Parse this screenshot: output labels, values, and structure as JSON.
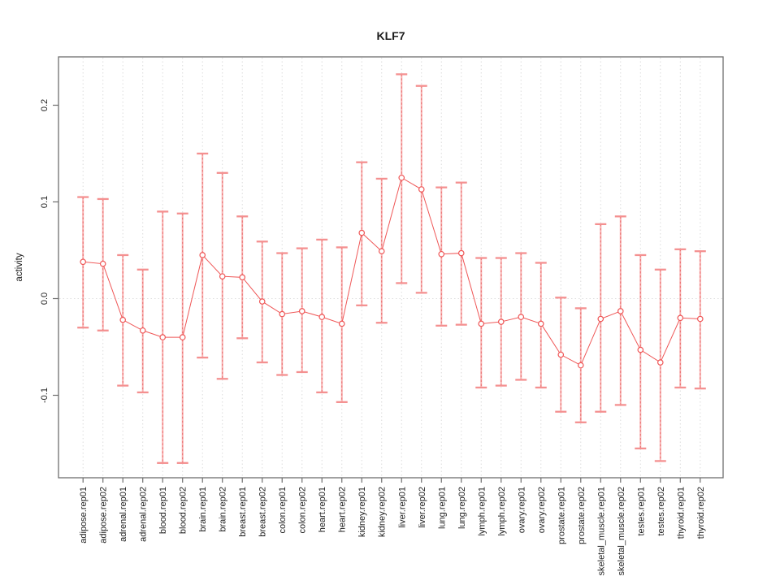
{
  "figure": {
    "background": "#ffffff"
  },
  "chart_data": {
    "type": "line",
    "title": "KLF7",
    "xlabel": "",
    "ylabel": "activity",
    "ylim": [
      -0.185,
      0.25
    ],
    "yticks": [
      "0.2",
      "0.1",
      "0.0",
      "-0.1"
    ],
    "ytick_values": [
      0.2,
      0.1,
      0.0,
      -0.1
    ],
    "grid": "vertical dotted gridline at every category; dotted horizontal line at y=0",
    "legend_position": "none",
    "marker": "open-circle",
    "error_bars": true,
    "categories": [
      "adipose.rep01",
      "adipose.rep02",
      "adrenal.rep01",
      "adrenal.rep02",
      "blood.rep01",
      "blood.rep02",
      "brain.rep01",
      "brain.rep02",
      "breast.rep01",
      "breast.rep02",
      "colon.rep01",
      "colon.rep02",
      "heart.rep01",
      "heart.rep02",
      "kidney.rep01",
      "kidney.rep02",
      "liver.rep01",
      "liver.rep02",
      "lung.rep01",
      "lung.rep02",
      "lymph.rep01",
      "lymph.rep02",
      "ovary.rep01",
      "ovary.rep02",
      "prostate.rep01",
      "prostate.rep02",
      "skeletal_muscle.rep01",
      "skeletal_muscle.rep02",
      "testes.rep01",
      "testes.rep02",
      "thyroid.rep01",
      "thyroid.rep02"
    ],
    "series": [
      {
        "name": "KLF7 activity",
        "values": [
          0.038,
          0.036,
          -0.022,
          -0.033,
          -0.04,
          -0.04,
          0.045,
          0.023,
          0.022,
          -0.003,
          -0.016,
          -0.013,
          -0.019,
          -0.026,
          0.068,
          0.049,
          0.125,
          0.113,
          0.046,
          0.047,
          -0.026,
          -0.024,
          -0.019,
          -0.026,
          -0.058,
          -0.069,
          -0.021,
          -0.013,
          -0.053,
          -0.066,
          -0.02,
          -0.021
        ],
        "error_low": [
          -0.03,
          -0.033,
          -0.09,
          -0.097,
          -0.17,
          -0.17,
          -0.061,
          -0.083,
          -0.041,
          -0.066,
          -0.079,
          -0.076,
          -0.097,
          -0.107,
          -0.007,
          -0.025,
          0.016,
          0.006,
          -0.028,
          -0.027,
          -0.092,
          -0.09,
          -0.084,
          -0.092,
          -0.117,
          -0.128,
          -0.117,
          -0.11,
          -0.155,
          -0.168,
          -0.092,
          -0.093
        ],
        "error_high": [
          0.105,
          0.103,
          0.045,
          0.03,
          0.09,
          0.088,
          0.15,
          0.13,
          0.085,
          0.059,
          0.047,
          0.052,
          0.061,
          0.053,
          0.141,
          0.124,
          0.232,
          0.22,
          0.115,
          0.12,
          0.042,
          0.042,
          0.047,
          0.037,
          0.001,
          -0.01,
          0.077,
          0.085,
          0.045,
          0.03,
          0.051,
          0.049
        ]
      }
    ],
    "colors": {
      "accent": "#ef5656",
      "errorbar_light": "#f8b2b2",
      "errorbar_dash": "#e96a6a",
      "errorbar_cap": "#f49090",
      "grid": "#dcdcdc",
      "zero_line": "#dedede",
      "axis": "#6e6e6e",
      "text": "#1c1c1c",
      "marker_fill": "#ffffff"
    }
  }
}
